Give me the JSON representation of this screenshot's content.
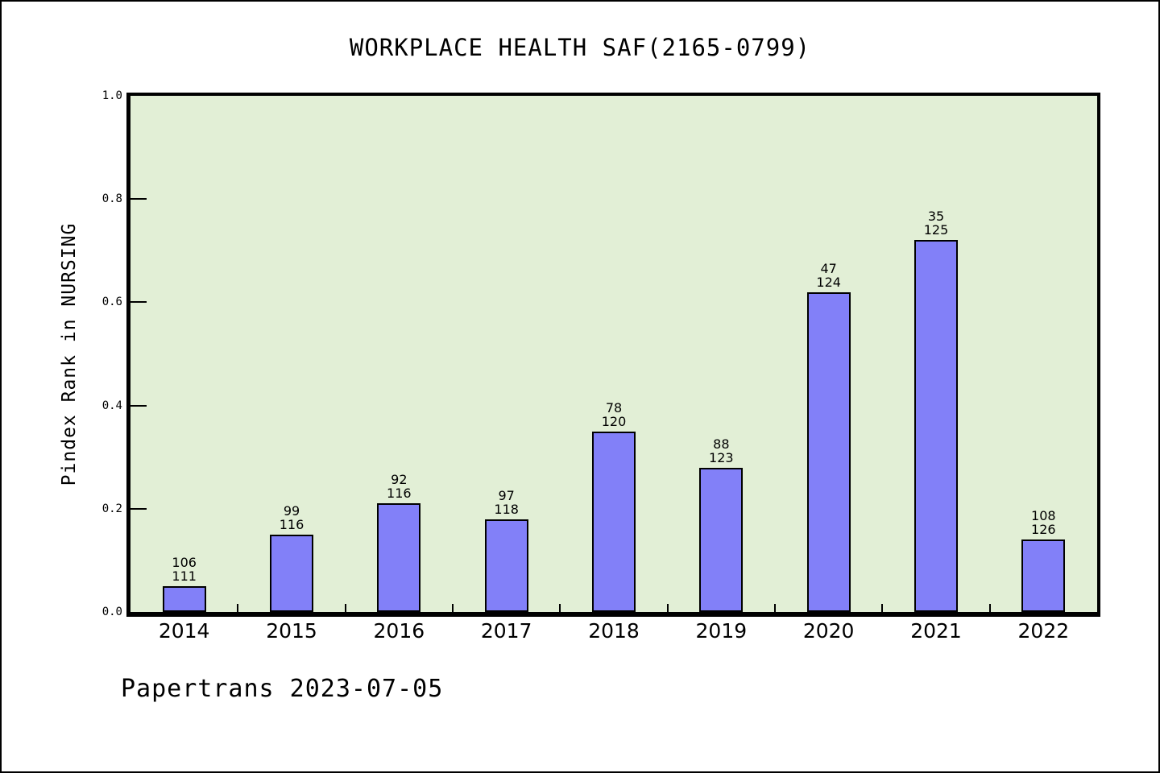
{
  "footer": "Papertrans 2023-07-05",
  "chart_data": {
    "type": "bar",
    "title": "WORKPLACE HEALTH SAF(2165-0799)",
    "ylabel": "Pindex Rank in NURSING",
    "categories": [
      "2014",
      "2015",
      "2016",
      "2017",
      "2018",
      "2019",
      "2020",
      "2021",
      "2022"
    ],
    "values": [
      0.05,
      0.15,
      0.21,
      0.18,
      0.35,
      0.28,
      0.62,
      0.72,
      0.14
    ],
    "bar_labels": [
      [
        "106",
        "111"
      ],
      [
        "99",
        "116"
      ],
      [
        "92",
        "116"
      ],
      [
        "97",
        "118"
      ],
      [
        "78",
        "120"
      ],
      [
        "88",
        "123"
      ],
      [
        "47",
        "124"
      ],
      [
        "35",
        "125"
      ],
      [
        "108",
        "126"
      ]
    ],
    "ylim": [
      0,
      1
    ],
    "yticks": [
      0.0,
      0.2,
      0.4,
      0.6,
      0.8,
      1.0
    ],
    "grid": false,
    "legend_position": "none",
    "colors": {
      "bar_fill": "#8280F8",
      "bar_border": "#000000",
      "plot_bg": "#E2EFD6",
      "page_bg": "#FFFFFF",
      "frame": "#000000",
      "text": "#000000"
    }
  }
}
